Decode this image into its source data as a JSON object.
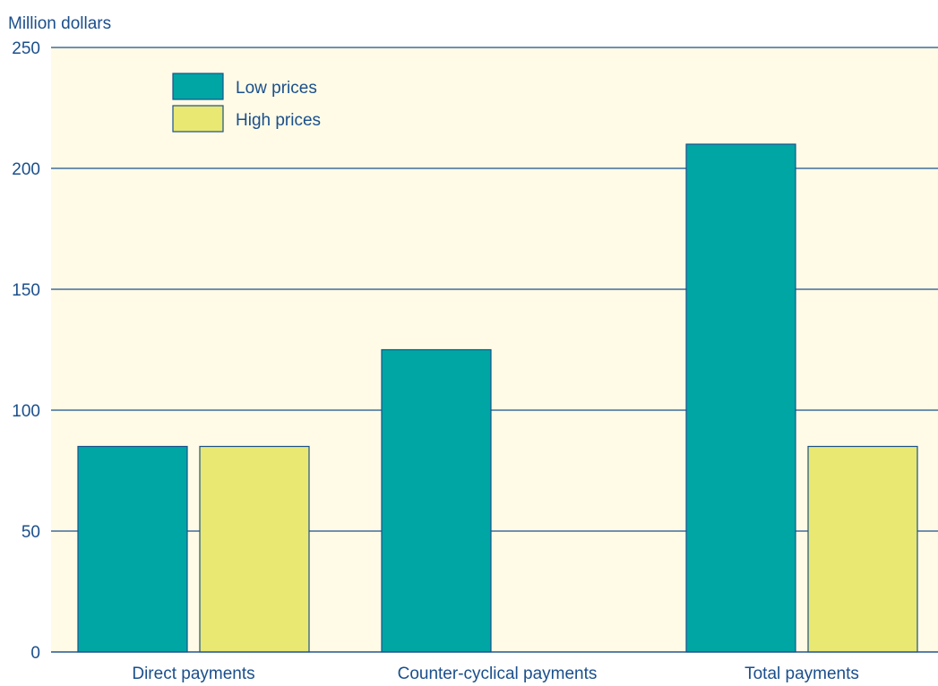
{
  "chart_data": {
    "type": "bar",
    "ylabel": "Million dollars",
    "ylim": [
      0,
      250
    ],
    "yticks": [
      0,
      50,
      100,
      150,
      200,
      250
    ],
    "grid": true,
    "legend_position": "top-left",
    "categories": [
      "Direct payments",
      "Counter-cyclical payments",
      "Total payments"
    ],
    "series": [
      {
        "name": "Low prices",
        "values": [
          85,
          125,
          210
        ],
        "color": "#00a6a4"
      },
      {
        "name": "High prices",
        "values": [
          85,
          0,
          85
        ],
        "color": "#e8e873"
      }
    ]
  },
  "colors": {
    "plot_background": "#fffbe6",
    "grid": "#1a4f8c",
    "text": "#1a4f8c",
    "bar_outline": "#1a4f8c"
  }
}
